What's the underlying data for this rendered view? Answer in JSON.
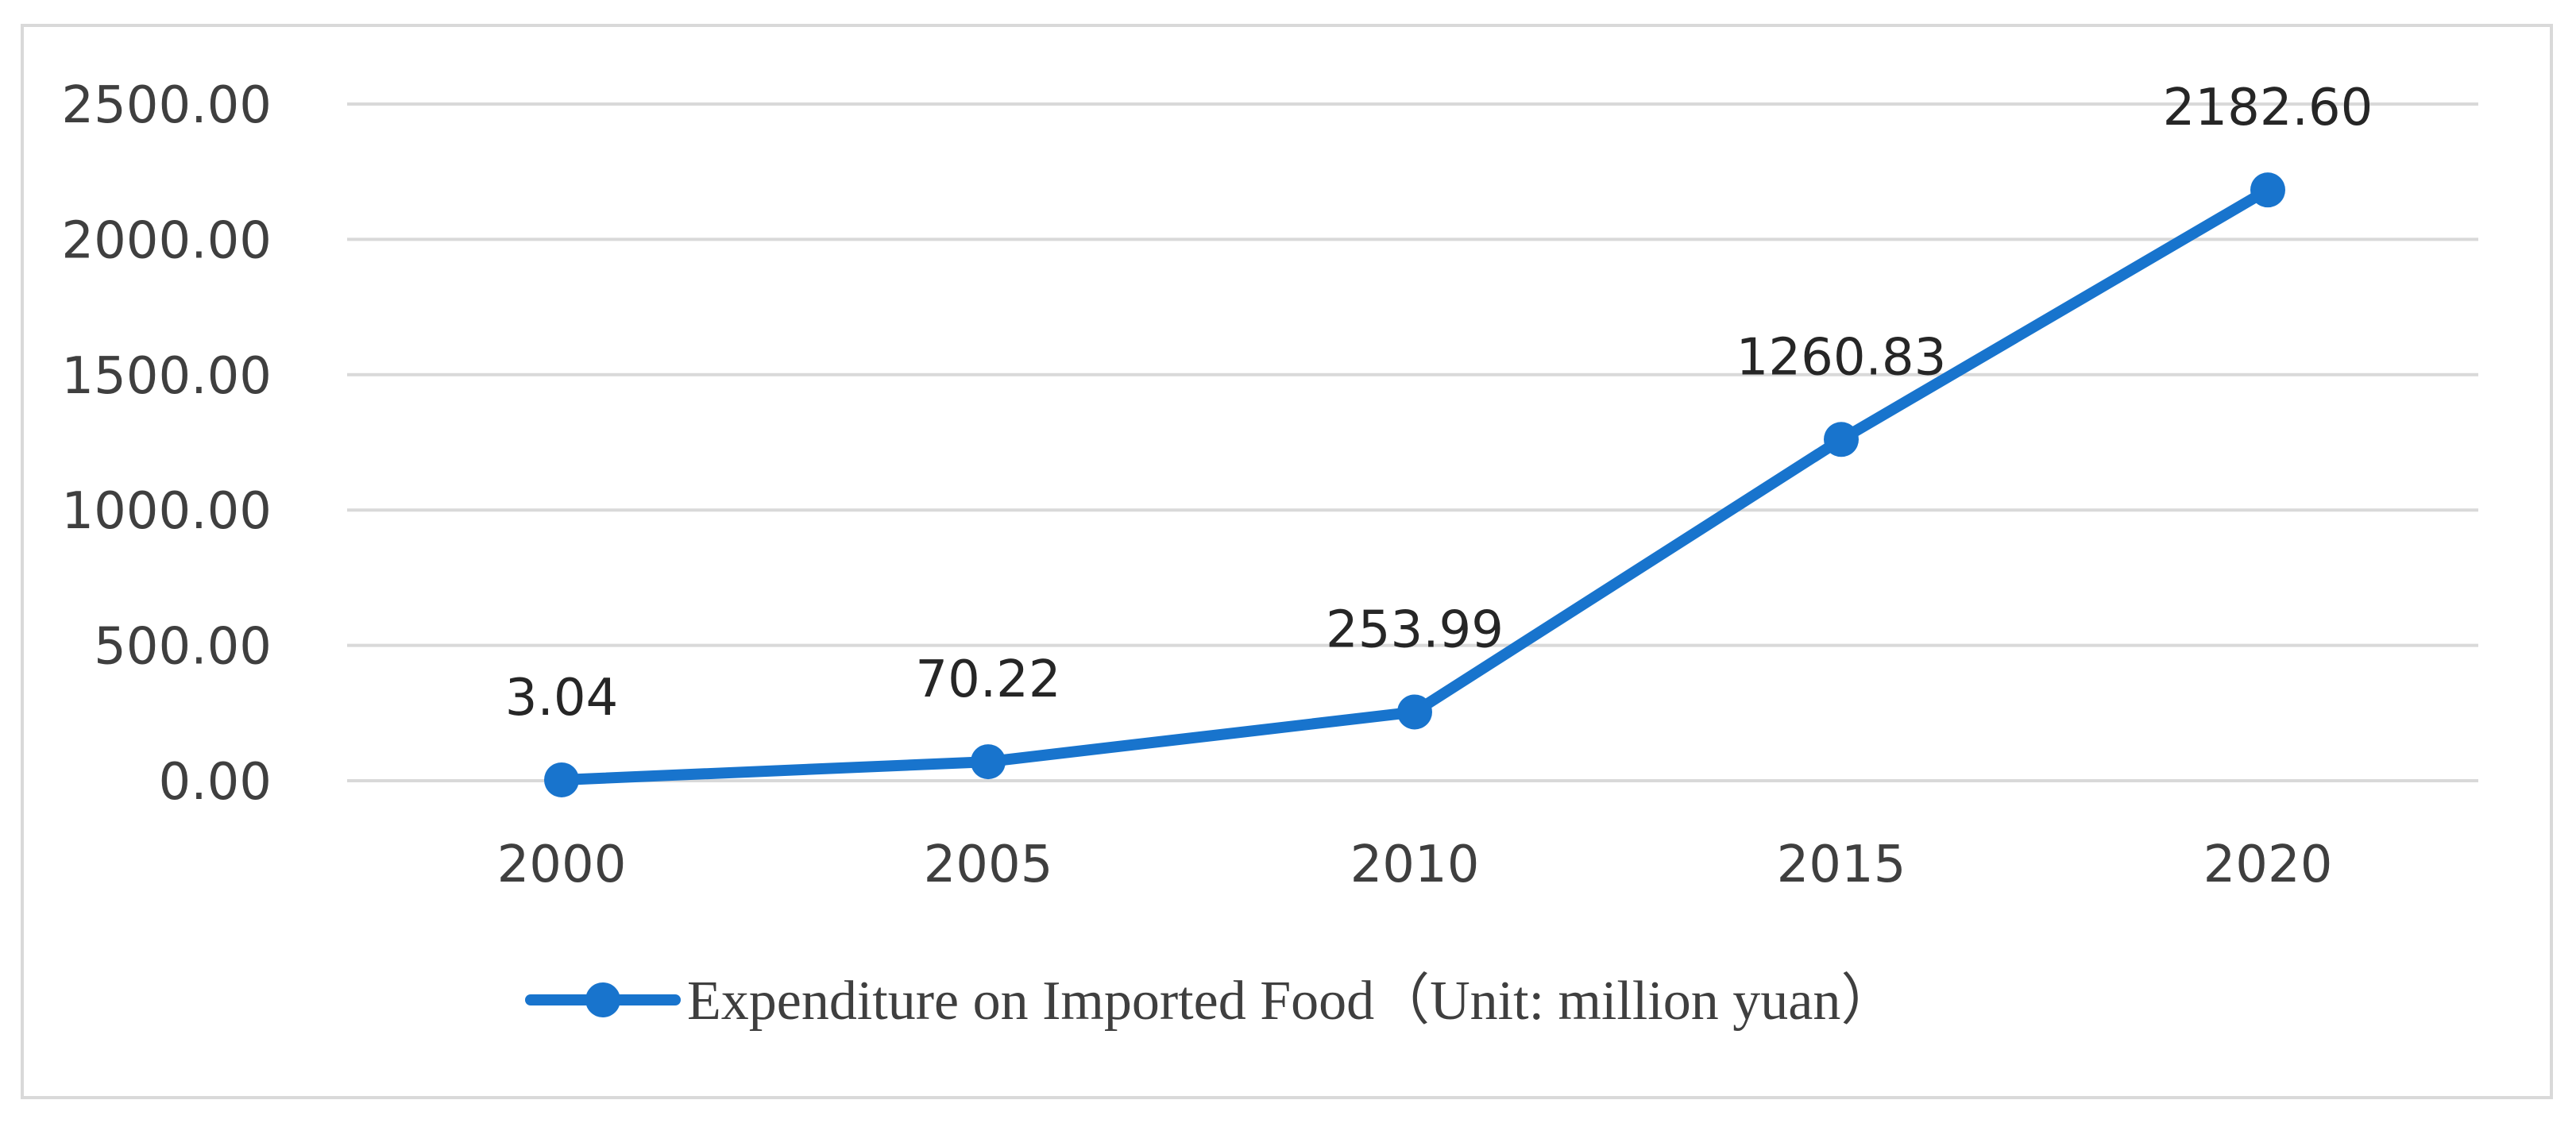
{
  "chart_data": {
    "type": "line",
    "title": "",
    "xlabel": "",
    "ylabel": "",
    "categories": [
      "2000",
      "2005",
      "2010",
      "2015",
      "2020"
    ],
    "series": [
      {
        "name": "Expenditure on Imported Food（Unit: million yuan）",
        "values": [
          3.04,
          70.22,
          253.99,
          1260.83,
          2182.6
        ],
        "labels": [
          "3.04",
          "70.22",
          "253.99",
          "1260.83",
          "2182.60"
        ],
        "color": "#1874cd"
      }
    ],
    "ylim": [
      0,
      2500
    ],
    "y_ticks": [
      0,
      500,
      1000,
      1500,
      2000,
      2500
    ],
    "y_tick_labels": [
      "0.00",
      "500.00",
      "1000.00",
      "1500.00",
      "2000.00",
      "2500.00"
    ],
    "grid": true,
    "legend_position": "bottom"
  },
  "colors": {
    "series": "#1874cd",
    "grid": "#d9d9d9",
    "frame": "#d9d9d9",
    "text": "#3f3f3f"
  }
}
